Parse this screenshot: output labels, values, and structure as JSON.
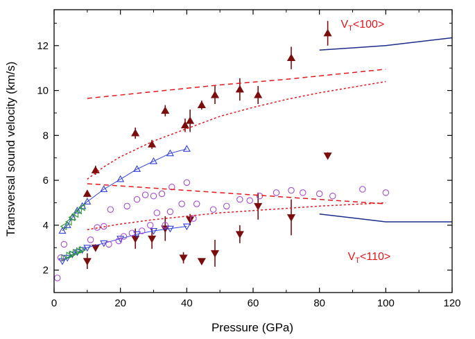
{
  "chart_data": {
    "type": "scatter",
    "xlabel": "Pressure (GPa)",
    "ylabel": "Transversal sound velocity (km/s)",
    "xlim": [
      0,
      120
    ],
    "ylim": [
      1.0,
      13.6
    ],
    "xticks": [
      "0",
      "20",
      "40",
      "60",
      "80",
      "100",
      "120"
    ],
    "yticks": [
      "2",
      "4",
      "6",
      "8",
      "10",
      "12"
    ],
    "x_tick_values": [
      0,
      20,
      40,
      60,
      80,
      100,
      120
    ],
    "y_tick_values": [
      2,
      4,
      6,
      8,
      10,
      12
    ],
    "grid": false,
    "annotations": [
      {
        "main": "V",
        "sub": "T",
        "rest": "<100>",
        "x": 93,
        "y": 12.8,
        "color": "#e8141c"
      },
      {
        "main": "V",
        "sub": "T",
        "rest": "<110>",
        "x": 95,
        "y": 2.45,
        "color": "#e8141c"
      }
    ],
    "series": [
      {
        "style": "up-triangle-filled-errorbar",
        "color": "#7b0d0d",
        "points": [
          {
            "x": 10,
            "y": 5.4,
            "err": 0.15
          },
          {
            "x": 12.5,
            "y": 6.45,
            "err": 0.2
          },
          {
            "x": 24.5,
            "y": 8.1,
            "err": 0.25
          },
          {
            "x": 29.5,
            "y": 7.6,
            "err": 0.2
          },
          {
            "x": 33.5,
            "y": 9.1,
            "err": 0.25
          },
          {
            "x": 39.5,
            "y": 8.45,
            "err": 0.3
          },
          {
            "x": 41,
            "y": 8.65,
            "err": 0.5
          },
          {
            "x": 44.5,
            "y": 9.35,
            "err": 0.2
          },
          {
            "x": 48.5,
            "y": 9.8,
            "err": 0.4
          },
          {
            "x": 56,
            "y": 10.05,
            "err": 0.5
          },
          {
            "x": 61.5,
            "y": 9.8,
            "err": 0.4
          },
          {
            "x": 71.5,
            "y": 11.45,
            "err": 0.5
          },
          {
            "x": 82.5,
            "y": 12.55,
            "err": 0.55
          }
        ]
      },
      {
        "style": "down-triangle-filled-errorbar",
        "color": "#7b0d0d",
        "points": [
          {
            "x": 10,
            "y": 2.4,
            "err": 0.35
          },
          {
            "x": 12.5,
            "y": 3.0,
            "err": 0.15
          },
          {
            "x": 24.5,
            "y": 3.4,
            "err": 0.45
          },
          {
            "x": 29.5,
            "y": 3.4,
            "err": 0.45
          },
          {
            "x": 33.5,
            "y": 3.85,
            "err": 0.55
          },
          {
            "x": 39,
            "y": 2.55,
            "err": 0.25
          },
          {
            "x": 41,
            "y": 4.25,
            "err": 0.25
          },
          {
            "x": 44.5,
            "y": 2.4,
            "err": 0.1
          },
          {
            "x": 48.5,
            "y": 2.75,
            "err": 0.6
          },
          {
            "x": 56,
            "y": 3.6,
            "err": 0.4
          },
          {
            "x": 61.5,
            "y": 4.85,
            "err": 0.6
          },
          {
            "x": 71.5,
            "y": 4.35,
            "err": 0.8
          },
          {
            "x": 82.5,
            "y": 7.1,
            "err": 0.15
          }
        ]
      },
      {
        "style": "up-triangle-open-line",
        "color": "#2f3fe0",
        "points": [
          {
            "x": 2.5,
            "y": 3.75
          },
          {
            "x": 4,
            "y": 4.0
          },
          {
            "x": 5.5,
            "y": 4.35
          },
          {
            "x": 7,
            "y": 4.65
          },
          {
            "x": 8.5,
            "y": 4.85
          },
          {
            "x": 10,
            "y": 5.05
          },
          {
            "x": 15,
            "y": 5.6
          },
          {
            "x": 20,
            "y": 6.05
          },
          {
            "x": 25,
            "y": 6.5
          },
          {
            "x": 30,
            "y": 6.85
          },
          {
            "x": 35,
            "y": 7.2
          },
          {
            "x": 40,
            "y": 7.4
          }
        ]
      },
      {
        "style": "down-triangle-open-line",
        "color": "#2f3fe0",
        "points": [
          {
            "x": 2.5,
            "y": 2.4
          },
          {
            "x": 4,
            "y": 2.55
          },
          {
            "x": 5.5,
            "y": 2.7
          },
          {
            "x": 7,
            "y": 2.8
          },
          {
            "x": 8.5,
            "y": 2.9
          },
          {
            "x": 10,
            "y": 3.0
          },
          {
            "x": 15,
            "y": 3.2
          },
          {
            "x": 20,
            "y": 3.4
          },
          {
            "x": 25,
            "y": 3.6
          },
          {
            "x": 30,
            "y": 3.75
          },
          {
            "x": 35,
            "y": 3.85
          },
          {
            "x": 40,
            "y": 3.95
          }
        ]
      },
      {
        "style": "left-triangle-open",
        "color": "#2a9a2a",
        "points": [
          {
            "x": 3,
            "y": 3.95
          },
          {
            "x": 4.5,
            "y": 4.15
          },
          {
            "x": 5.5,
            "y": 4.35
          },
          {
            "x": 6.5,
            "y": 4.5
          },
          {
            "x": 7.5,
            "y": 4.65
          },
          {
            "x": 8.5,
            "y": 4.8
          }
        ]
      },
      {
        "style": "right-triangle-open",
        "color": "#2a9a2a",
        "points": [
          {
            "x": 3,
            "y": 2.55
          },
          {
            "x": 4.5,
            "y": 2.65
          },
          {
            "x": 5.5,
            "y": 2.7
          },
          {
            "x": 6.5,
            "y": 2.78
          },
          {
            "x": 7.5,
            "y": 2.85
          },
          {
            "x": 8.5,
            "y": 2.9
          }
        ]
      },
      {
        "style": "circle-open",
        "color": "#a64ad8",
        "points": [
          {
            "x": 1,
            "y": 1.65
          },
          {
            "x": 2,
            "y": 2.55
          },
          {
            "x": 3,
            "y": 3.15
          },
          {
            "x": 11,
            "y": 3.35
          },
          {
            "x": 13,
            "y": 3.9
          },
          {
            "x": 15,
            "y": 3.95
          },
          {
            "x": 16.5,
            "y": 3.15
          },
          {
            "x": 17,
            "y": 4.7
          },
          {
            "x": 19.5,
            "y": 3.3
          },
          {
            "x": 21,
            "y": 3.5
          },
          {
            "x": 22,
            "y": 4.85
          },
          {
            "x": 23.5,
            "y": 3.65
          },
          {
            "x": 25,
            "y": 5.15
          },
          {
            "x": 26.5,
            "y": 3.75
          },
          {
            "x": 27.5,
            "y": 5.35
          },
          {
            "x": 29,
            "y": 4.0
          },
          {
            "x": 30,
            "y": 5.3
          },
          {
            "x": 31,
            "y": 4.55
          },
          {
            "x": 32.5,
            "y": 5.4
          },
          {
            "x": 33.5,
            "y": 4.0
          },
          {
            "x": 35,
            "y": 4.6
          },
          {
            "x": 35.5,
            "y": 5.7
          },
          {
            "x": 38.5,
            "y": 4.95
          },
          {
            "x": 40,
            "y": 5.9
          },
          {
            "x": 42,
            "y": 4.3
          },
          {
            "x": 43,
            "y": 4.95
          },
          {
            "x": 48,
            "y": 4.7
          },
          {
            "x": 52,
            "y": 4.85
          },
          {
            "x": 56,
            "y": 5.15
          },
          {
            "x": 59,
            "y": 5.1
          },
          {
            "x": 62,
            "y": 5.3
          },
          {
            "x": 67,
            "y": 5.45
          },
          {
            "x": 71.5,
            "y": 5.55
          },
          {
            "x": 75,
            "y": 5.45
          },
          {
            "x": 80,
            "y": 5.4
          },
          {
            "x": 84,
            "y": 5.3
          },
          {
            "x": 93,
            "y": 5.6
          },
          {
            "x": 100,
            "y": 5.45
          }
        ]
      },
      {
        "style": "line-dashed",
        "color": "#e8141c",
        "points": [
          {
            "x": 10,
            "y": 9.65
          },
          {
            "x": 30,
            "y": 9.95
          },
          {
            "x": 50,
            "y": 10.25
          },
          {
            "x": 70,
            "y": 10.5
          },
          {
            "x": 100,
            "y": 10.95
          }
        ]
      },
      {
        "style": "line-dotted",
        "color": "#e8141c",
        "points": [
          {
            "x": 10,
            "y": 6.05
          },
          {
            "x": 15,
            "y": 6.6
          },
          {
            "x": 20,
            "y": 7.05
          },
          {
            "x": 30,
            "y": 7.75
          },
          {
            "x": 40,
            "y": 8.3
          },
          {
            "x": 50,
            "y": 8.85
          },
          {
            "x": 60,
            "y": 9.25
          },
          {
            "x": 70,
            "y": 9.6
          },
          {
            "x": 80,
            "y": 9.9
          },
          {
            "x": 90,
            "y": 10.15
          },
          {
            "x": 100,
            "y": 10.4
          }
        ]
      },
      {
        "style": "line-dashed",
        "color": "#e8141c",
        "points": [
          {
            "x": 10,
            "y": 5.85
          },
          {
            "x": 30,
            "y": 5.65
          },
          {
            "x": 50,
            "y": 5.45
          },
          {
            "x": 70,
            "y": 5.25
          },
          {
            "x": 100,
            "y": 4.95
          }
        ]
      },
      {
        "style": "line-dotted",
        "color": "#e8141c",
        "points": [
          {
            "x": 10,
            "y": 3.8
          },
          {
            "x": 20,
            "y": 4.05
          },
          {
            "x": 30,
            "y": 4.25
          },
          {
            "x": 40,
            "y": 4.4
          },
          {
            "x": 50,
            "y": 4.55
          },
          {
            "x": 60,
            "y": 4.65
          },
          {
            "x": 70,
            "y": 4.75
          },
          {
            "x": 80,
            "y": 4.85
          },
          {
            "x": 100,
            "y": 5.0
          }
        ]
      },
      {
        "style": "line-solid",
        "color": "#1a2a8a",
        "points": [
          {
            "x": 80,
            "y": 11.8
          },
          {
            "x": 100,
            "y": 12.0
          },
          {
            "x": 120,
            "y": 12.35
          }
        ]
      },
      {
        "style": "line-solid",
        "color": "#1a2a8a",
        "points": [
          {
            "x": 80,
            "y": 4.5
          },
          {
            "x": 100,
            "y": 4.15
          },
          {
            "x": 120,
            "y": 4.15
          }
        ]
      }
    ]
  }
}
